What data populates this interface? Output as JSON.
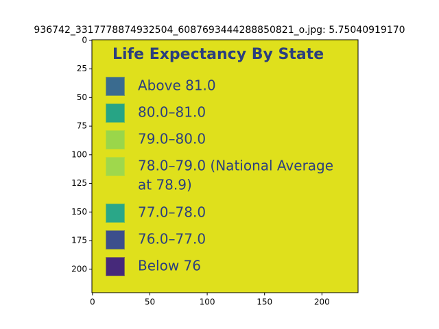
{
  "chart_data": {
    "type": "image",
    "title": "936742_3317778874932504_6087693444288850821_o.jpg: 5.75040919170",
    "xlim": [
      -0.5,
      231.5
    ],
    "ylim": [
      220.5,
      -0.5
    ],
    "xticks": [
      0,
      50,
      100,
      150,
      200
    ],
    "yticks": [
      0,
      25,
      50,
      75,
      100,
      125,
      150,
      175,
      200
    ],
    "image": {
      "background": "#dfe01c",
      "text_color": "#2b3f7e",
      "heading": "Life Expectancy By State",
      "items": [
        {
          "lines": [
            "Above 81.0"
          ],
          "color": "#3a6b8f"
        },
        {
          "lines": [
            "80.0–81.0"
          ],
          "color": "#27a485"
        },
        {
          "lines": [
            "79.0–80.0"
          ],
          "color": "#9ad64a"
        },
        {
          "lines": [
            "78.0–79.0 (National Average",
            "at 78.9)"
          ],
          "color": "#9fd84c"
        },
        {
          "lines": [
            "77.0–78.0"
          ],
          "color": "#2aa788"
        },
        {
          "lines": [
            "76.0–77.0"
          ],
          "color": "#3c4f8c"
        },
        {
          "lines": [
            "Below 76"
          ],
          "color": "#46297a"
        }
      ]
    }
  }
}
